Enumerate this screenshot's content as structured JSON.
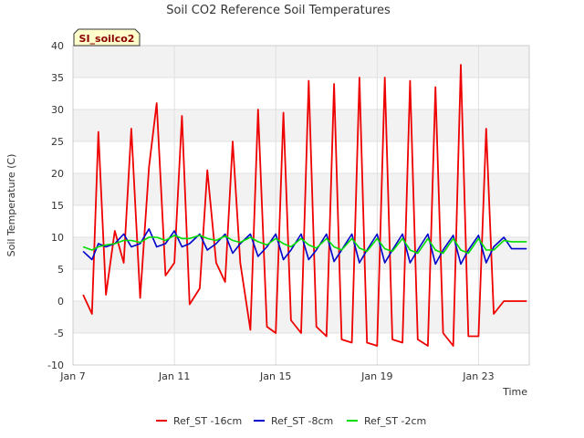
{
  "chart_data": {
    "type": "line",
    "title": "Soil CO2 Reference Soil Temperatures",
    "xlabel": "Time",
    "ylabel": "Soil Temperature (C)",
    "site_badge": "SI_soilco2",
    "x_ticks": [
      "Jan 7",
      "Jan 11",
      "Jan 15",
      "Jan 19",
      "Jan 23"
    ],
    "x_tick_days": [
      7,
      11,
      15,
      19,
      23
    ],
    "xlim": [
      7,
      25
    ],
    "ylim": [
      -10,
      40
    ],
    "y_ticks": [
      -10,
      -5,
      0,
      5,
      10,
      15,
      20,
      25,
      30,
      35,
      40
    ],
    "grid": true,
    "legend_position": "bottom",
    "x": [
      7.4,
      7.75,
      8.0,
      8.3,
      8.65,
      9.0,
      9.3,
      9.65,
      10.0,
      10.3,
      10.65,
      11.0,
      11.3,
      11.6,
      12.0,
      12.3,
      12.65,
      13.0,
      13.3,
      13.6,
      14.0,
      14.3,
      14.65,
      15.0,
      15.3,
      15.6,
      16.0,
      16.3,
      16.6,
      17.0,
      17.3,
      17.6,
      18.0,
      18.3,
      18.6,
      19.0,
      19.3,
      19.6,
      20.0,
      20.3,
      20.6,
      21.0,
      21.3,
      21.6,
      22.0,
      22.3,
      22.6,
      23.0,
      23.3,
      23.6,
      24.0,
      24.3,
      24.6,
      24.9
    ],
    "series": [
      {
        "name": "Ref_ST -16cm",
        "color": "#ee0000",
        "values": [
          1,
          -2,
          26.5,
          1,
          11,
          6,
          27,
          0.5,
          21,
          31,
          4,
          6,
          29,
          -0.5,
          2,
          20.5,
          6,
          3,
          25,
          6,
          -4.5,
          30,
          -4,
          -5,
          29.5,
          -3,
          -5,
          34.5,
          -4,
          -5.5,
          34,
          -6,
          -6.5,
          35,
          -6.5,
          -7,
          35,
          -6,
          -6.5,
          34.5,
          -6,
          -7,
          33.5,
          -5,
          -7,
          37,
          -5.5,
          -5.5,
          27,
          -2,
          0,
          0,
          0,
          0
        ]
      },
      {
        "name": "Ref_ST -8cm",
        "color": "#0000cc",
        "values": [
          7.8,
          6.5,
          9,
          8.5,
          9,
          10.5,
          8.5,
          9,
          11.3,
          8.5,
          9,
          11,
          8.5,
          9,
          10.5,
          8,
          9,
          10.5,
          7.5,
          9,
          10.5,
          7,
          8.5,
          10.5,
          6.5,
          8,
          10.5,
          6.5,
          8,
          10.5,
          6.2,
          8,
          10.5,
          6,
          8,
          10.5,
          6,
          8,
          10.5,
          6,
          8,
          10.5,
          5.8,
          8,
          10.3,
          5.8,
          8,
          10.3,
          6,
          8.5,
          10,
          8.2,
          8.2,
          8.2
        ]
      },
      {
        "name": "Ref_ST -2cm",
        "color": "#00dd00",
        "values": [
          8.5,
          8,
          8.5,
          8.8,
          9,
          9.5,
          9.5,
          9.2,
          10,
          10,
          9.5,
          10.3,
          9.8,
          9.8,
          10.3,
          9.8,
          9.5,
          10.2,
          9.5,
          9.2,
          10,
          9.3,
          8.8,
          9.8,
          9,
          8.5,
          9.8,
          8.8,
          8.3,
          9.8,
          8.5,
          8,
          9.8,
          8.3,
          7.8,
          9.8,
          8.2,
          7.8,
          9.8,
          8,
          7.5,
          9.8,
          8,
          7.5,
          9.8,
          8,
          7.5,
          9.8,
          8,
          8,
          9.5,
          9.3,
          9.3,
          9.3
        ]
      }
    ]
  }
}
